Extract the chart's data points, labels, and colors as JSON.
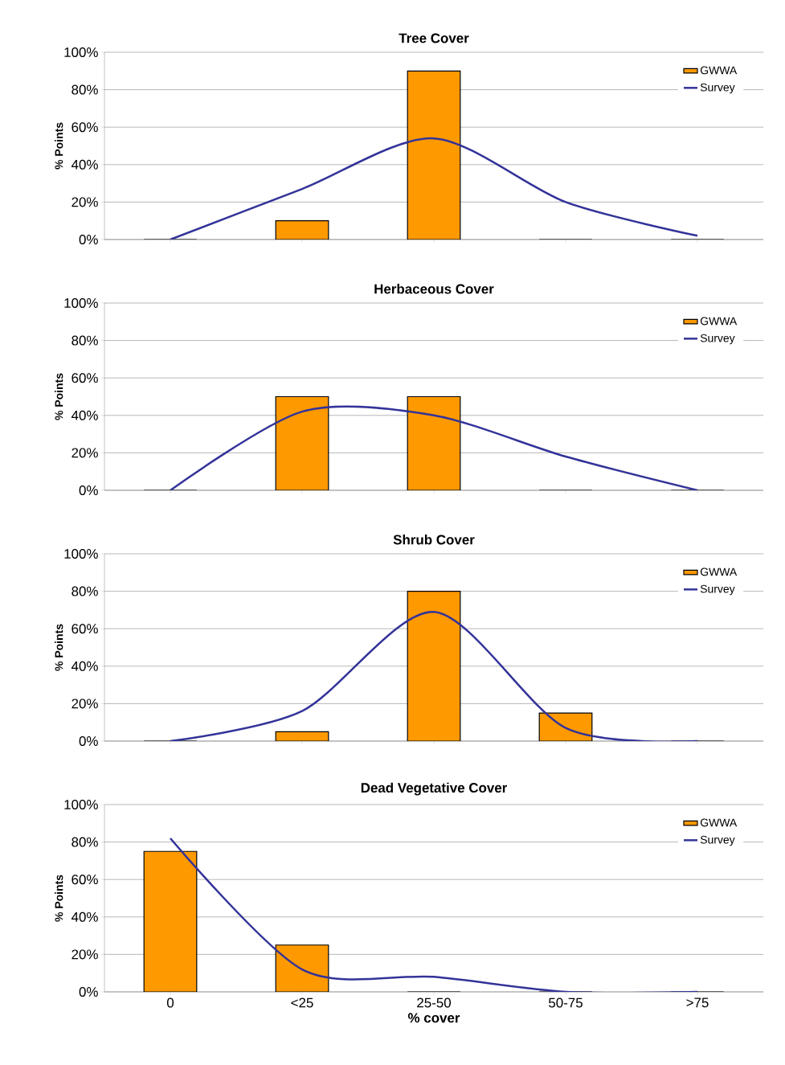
{
  "chart_data": [
    {
      "type": "bar",
      "title": "Tree Cover",
      "ylabel": "% Points",
      "categories": [
        null,
        null,
        null,
        null,
        null
      ],
      "tick_labels": "y",
      "grid": "y",
      "legend": "top right",
      "ylim": [
        0,
        100
      ],
      "yticks": [
        {
          "value": 0,
          "label": "0%"
        },
        {
          "value": 20,
          "label": "20%"
        },
        {
          "value": 40,
          "label": "40%"
        },
        {
          "value": 60,
          "label": "60%"
        },
        {
          "value": 80,
          "label": "80%"
        },
        {
          "value": 100,
          "label": "100%"
        }
      ],
      "series": [
        {
          "name": "GWWA",
          "color": "#ff9900",
          "values": [
            0,
            10,
            90,
            0,
            0
          ]
        },
        {
          "name": "Survey",
          "type": "line",
          "color": "#333399",
          "values": [
            0,
            27,
            54,
            20,
            2
          ]
        }
      ]
    },
    {
      "type": "bar",
      "title": "Herbaceous Cover",
      "ylabel": "% Points",
      "categories": [
        null,
        null,
        null,
        null,
        null
      ],
      "tick_labels": "y",
      "grid": "y",
      "legend": "top right",
      "ylim": [
        0,
        100
      ],
      "yticks": [
        {
          "value": 0,
          "label": "0%"
        },
        {
          "value": 20,
          "label": "20%"
        },
        {
          "value": 40,
          "label": "40%"
        },
        {
          "value": 60,
          "label": "60%"
        },
        {
          "value": 80,
          "label": "80%"
        },
        {
          "value": 100,
          "label": "100%"
        }
      ],
      "series": [
        {
          "name": "GWWA",
          "color": "#ff9900",
          "values": [
            0,
            50,
            50,
            0,
            0
          ]
        },
        {
          "name": "Survey",
          "type": "line",
          "color": "#333399",
          "values": [
            0,
            42,
            40,
            18,
            0
          ]
        }
      ]
    },
    {
      "type": "bar",
      "title": "Shrub Cover",
      "ylabel": "% Points",
      "categories": [
        null,
        null,
        null,
        null,
        null
      ],
      "tick_labels": "y",
      "grid": "y",
      "legend": "top right",
      "ylim": [
        0,
        100
      ],
      "yticks": [
        {
          "value": 0,
          "label": "0%"
        },
        {
          "value": 20,
          "label": "20%"
        },
        {
          "value": 40,
          "label": "40%"
        },
        {
          "value": 60,
          "label": "60%"
        },
        {
          "value": 80,
          "label": "80%"
        },
        {
          "value": 100,
          "label": "100%"
        }
      ],
      "series": [
        {
          "name": "GWWA",
          "color": "#ff9900",
          "values": [
            0,
            5,
            80,
            15,
            0
          ]
        },
        {
          "name": "Survey",
          "type": "line",
          "color": "#333399",
          "values": [
            0,
            16,
            69,
            7,
            0
          ]
        }
      ]
    },
    {
      "type": "bar",
      "title": "Dead Vegetative Cover",
      "ylabel": "% Points",
      "xlabel": "% cover",
      "categories": [
        "0",
        "<25",
        "25-50",
        "50-75",
        ">75"
      ],
      "grid": "y",
      "legend": "top right",
      "ylim": [
        0,
        100
      ],
      "yticks": [
        {
          "value": 0,
          "label": "0%"
        },
        {
          "value": 20,
          "label": "20%"
        },
        {
          "value": 40,
          "label": "40%"
        },
        {
          "value": 60,
          "label": "60%"
        },
        {
          "value": 80,
          "label": "80%"
        },
        {
          "value": 100,
          "label": "100%"
        }
      ],
      "series": [
        {
          "name": "GWWA",
          "color": "#ff9900",
          "values": [
            75,
            25,
            0,
            0,
            0
          ]
        },
        {
          "name": "Survey",
          "type": "line",
          "color": "#333399",
          "values": [
            82,
            12,
            8,
            0,
            0
          ]
        }
      ]
    }
  ]
}
